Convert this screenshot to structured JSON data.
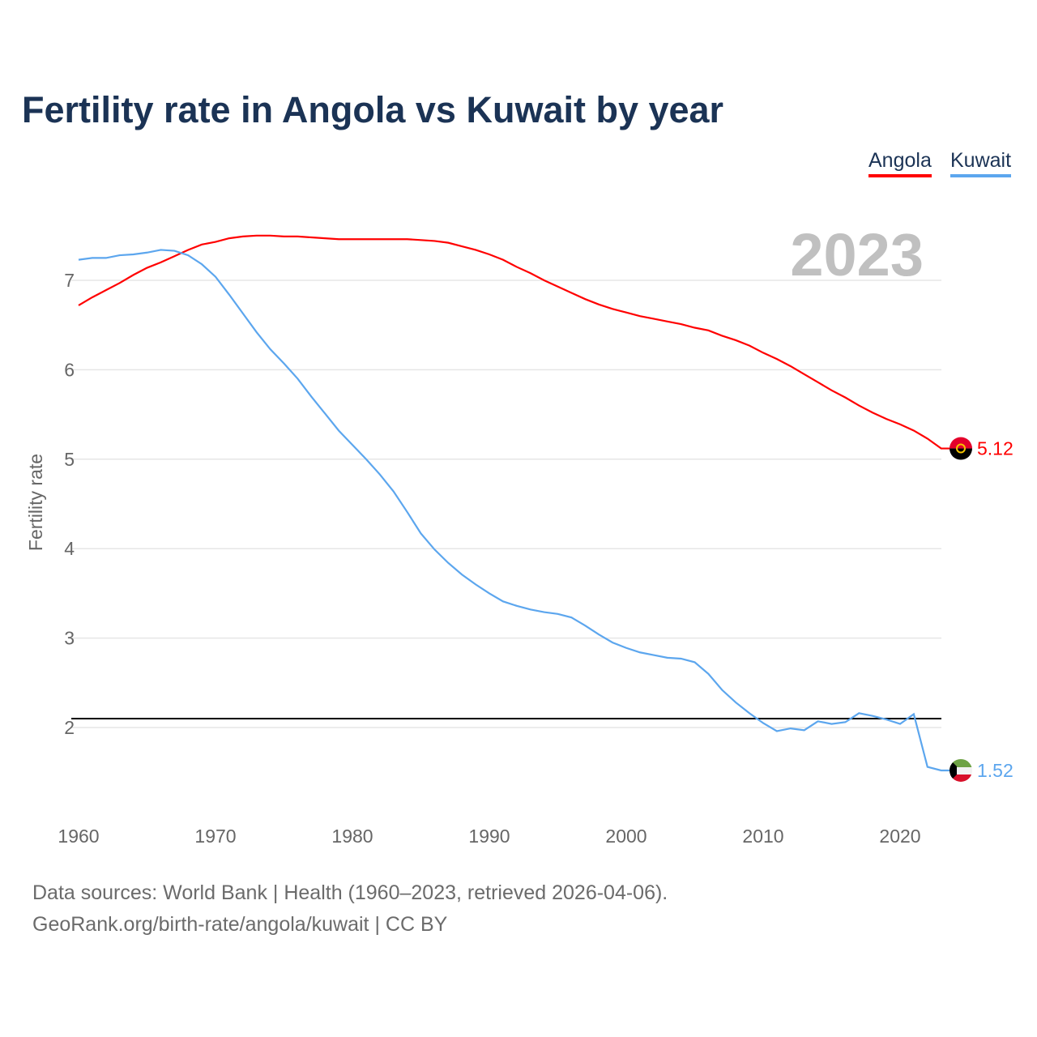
{
  "chart_data": {
    "type": "line",
    "title": "Fertility rate in Angola vs Kuwait by year",
    "xlabel": "",
    "ylabel": "Fertility rate",
    "xlim": [
      1960,
      2023
    ],
    "ylim": [
      1.0,
      7.8
    ],
    "x_ticks": [
      1960,
      1970,
      1980,
      1990,
      2000,
      2010,
      2020
    ],
    "y_ticks": [
      2,
      3,
      4,
      5,
      6,
      7
    ],
    "grid": true,
    "legend_position": "top-right",
    "year_label": "2023",
    "reference_line": 2.1,
    "x": [
      1960,
      1961,
      1962,
      1963,
      1964,
      1965,
      1966,
      1967,
      1968,
      1969,
      1970,
      1971,
      1972,
      1973,
      1974,
      1975,
      1976,
      1977,
      1978,
      1979,
      1980,
      1981,
      1982,
      1983,
      1984,
      1985,
      1986,
      1987,
      1988,
      1989,
      1990,
      1991,
      1992,
      1993,
      1994,
      1995,
      1996,
      1997,
      1998,
      1999,
      2000,
      2001,
      2002,
      2003,
      2004,
      2005,
      2006,
      2007,
      2008,
      2009,
      2010,
      2011,
      2012,
      2013,
      2014,
      2015,
      2016,
      2017,
      2018,
      2019,
      2020,
      2021,
      2022,
      2023
    ],
    "series": [
      {
        "name": "Angola",
        "color": "#ff0000",
        "end_label": "5.12",
        "values": [
          6.72,
          6.81,
          6.89,
          6.97,
          7.06,
          7.14,
          7.2,
          7.27,
          7.34,
          7.4,
          7.43,
          7.47,
          7.49,
          7.5,
          7.5,
          7.49,
          7.49,
          7.48,
          7.47,
          7.46,
          7.46,
          7.46,
          7.46,
          7.46,
          7.46,
          7.45,
          7.44,
          7.42,
          7.38,
          7.34,
          7.29,
          7.23,
          7.15,
          7.08,
          7.0,
          6.93,
          6.86,
          6.79,
          6.73,
          6.68,
          6.64,
          6.6,
          6.57,
          6.54,
          6.51,
          6.47,
          6.44,
          6.38,
          6.33,
          6.27,
          6.19,
          6.12,
          6.04,
          5.95,
          5.86,
          5.77,
          5.69,
          5.6,
          5.52,
          5.45,
          5.39,
          5.32,
          5.23,
          5.12
        ]
      },
      {
        "name": "Kuwait",
        "color": "#5ca6ee",
        "end_label": "1.52",
        "values": [
          7.23,
          7.25,
          7.25,
          7.28,
          7.29,
          7.31,
          7.34,
          7.33,
          7.28,
          7.18,
          7.04,
          6.84,
          6.63,
          6.42,
          6.23,
          6.07,
          5.9,
          5.7,
          5.51,
          5.32,
          5.16,
          5.0,
          4.83,
          4.64,
          4.41,
          4.17,
          3.99,
          3.84,
          3.71,
          3.6,
          3.5,
          3.41,
          3.36,
          3.32,
          3.29,
          3.27,
          3.23,
          3.14,
          3.04,
          2.95,
          2.89,
          2.84,
          2.81,
          2.78,
          2.77,
          2.73,
          2.6,
          2.42,
          2.28,
          2.16,
          2.05,
          1.96,
          1.99,
          1.97,
          2.07,
          2.04,
          2.06,
          2.16,
          2.13,
          2.09,
          2.04,
          2.15,
          1.56,
          1.52
        ]
      }
    ]
  },
  "footer": {
    "line1": "Data sources: World Bank | Health (1960–2023, retrieved 2026-04-06).",
    "line2": "GeoRank.org/birth-rate/angola/kuwait | CC BY"
  }
}
